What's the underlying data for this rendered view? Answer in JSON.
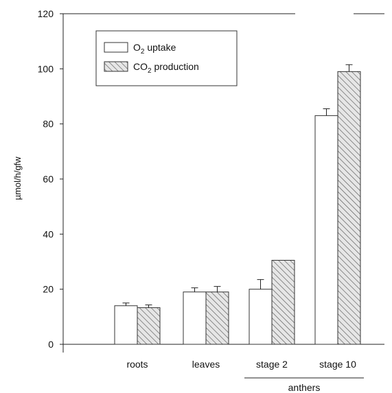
{
  "chart_data": {
    "type": "bar",
    "categories": [
      "roots",
      "leaves",
      "stage 2",
      "stage 10"
    ],
    "group_label": {
      "text": "anthers",
      "covers": [
        "stage 2",
        "stage 10"
      ]
    },
    "series": [
      {
        "name_main": "O",
        "name_sub": "2",
        "name_rest": " uptake",
        "values": [
          14,
          19,
          20,
          83
        ],
        "errors": [
          1,
          1.5,
          3.5,
          2.5
        ],
        "fill": "#ffffff",
        "pattern": "none"
      },
      {
        "name_main": "CO",
        "name_sub": "2",
        "name_rest": " production",
        "values": [
          13.3,
          19,
          30.5,
          99
        ],
        "errors": [
          1,
          2,
          0,
          2.5
        ],
        "fill": "#e6e6e6",
        "pattern": "diagonal-hatch"
      }
    ],
    "ylabel": "µmol/h/gfw",
    "xlabel": "",
    "title": "",
    "ylim": [
      0,
      120
    ],
    "yticks": [
      0,
      20,
      40,
      60,
      80,
      100,
      120
    ],
    "grid": false,
    "legend": "top-left",
    "colors": {
      "axis": "#222222",
      "bar_stroke": "#333333",
      "hatch": "#555555"
    }
  }
}
